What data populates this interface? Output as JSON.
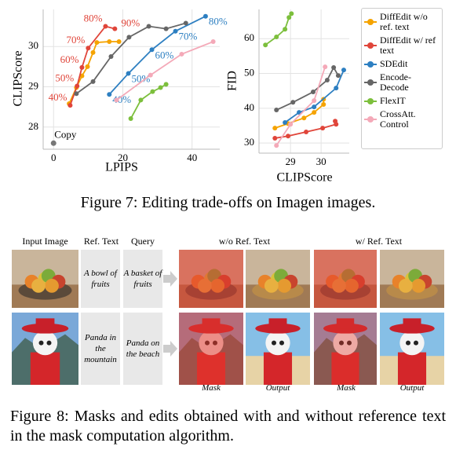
{
  "chart_data": [
    {
      "type": "line",
      "xlabel": "LPIPS",
      "ylabel": "CLIPScore",
      "xlim": [
        -3,
        48
      ],
      "ylim": [
        27.45,
        30.92
      ],
      "xticks": [
        0,
        20,
        40
      ],
      "yticks": [
        28,
        29,
        30
      ],
      "grid": true,
      "copy_point": {
        "label": "Copy",
        "x": 0,
        "y": 27.6,
        "color": "#777777"
      },
      "series": [
        {
          "name": "DiffEdit w/o ref. text",
          "color": "#f5a300",
          "x": [
            4.5,
            6.6,
            8.2,
            9.8,
            11.4,
            12.5,
            16.1,
            18.9
          ],
          "values": [
            28.58,
            28.98,
            29.27,
            29.5,
            29.85,
            30.1,
            30.12,
            30.12
          ]
        },
        {
          "name": "DiffEdit w/ ref text",
          "color": "#e0453a",
          "x": [
            4.8,
            6.8,
            8.2,
            10,
            15,
            17.7
          ],
          "values": [
            28.54,
            29.02,
            29.48,
            29.96,
            30.5,
            30.44
          ],
          "point_labels": [
            "40%",
            "50%",
            "60%",
            "70%",
            "80%",
            "90%"
          ]
        },
        {
          "name": "SDEdit",
          "color": "#2d7fc1",
          "x": [
            16.1,
            21.6,
            28.4,
            35.2,
            43.9
          ],
          "values": [
            28.81,
            29.33,
            29.92,
            30.38,
            30.75
          ],
          "point_labels": [
            "40%",
            "50%",
            "60%",
            "70%",
            "80%"
          ]
        },
        {
          "name": "Encode-Decode",
          "color": "#666666",
          "x": [
            6.6,
            11.4,
            16.6,
            21.8,
            27.5,
            32.5,
            38.2
          ],
          "values": [
            28.83,
            29.13,
            29.75,
            30.23,
            30.5,
            30.44,
            30.58
          ]
        },
        {
          "name": "FlexIT",
          "color": "#7cbf3c",
          "x": [
            22.3,
            25.2,
            28.6,
            30.9,
            32.5
          ],
          "values": [
            28.21,
            28.67,
            28.88,
            28.98,
            29.06
          ]
        },
        {
          "name": "CrossAtt. Control",
          "color": "#f4a9b8",
          "x": [
            18.2,
            28,
            37,
            46.1
          ],
          "values": [
            28.67,
            29.29,
            29.81,
            30.12
          ]
        }
      ]
    },
    {
      "type": "line",
      "xlabel": "CLIPScore",
      "ylabel": "FID",
      "xlim": [
        27.97,
        30.92
      ],
      "ylim": [
        27.1,
        68.4
      ],
      "xticks": [
        29,
        30
      ],
      "yticks": [
        30,
        40,
        50,
        60
      ],
      "grid": true,
      "series": [
        {
          "name": "DiffEdit w/o ref. text",
          "color": "#f5a300",
          "x": [
            28.49,
            28.92,
            29.44,
            29.77,
            30.08,
            30.08
          ],
          "values": [
            34.3,
            35.6,
            37.2,
            38.8,
            41.1,
            42.6
          ]
        },
        {
          "name": "DiffEdit w/ ref text",
          "color": "#e0453a",
          "x": [
            28.49,
            28.92,
            29.51,
            30.05,
            30.49,
            30.46
          ],
          "values": [
            31.4,
            32,
            33.2,
            34.3,
            35.4,
            36.3
          ]
        },
        {
          "name": "SDEdit",
          "color": "#2d7fc1",
          "x": [
            28.82,
            29.28,
            29.77,
            30.49,
            30.74
          ],
          "values": [
            35.9,
            38.8,
            40.4,
            45.8,
            51
          ]
        },
        {
          "name": "Encode-Decode",
          "color": "#666666",
          "x": [
            28.54,
            29.08,
            29.74,
            30.2,
            30.41,
            30.56
          ],
          "values": [
            39.5,
            41.7,
            44.7,
            48.1,
            51.7,
            49.4
          ]
        },
        {
          "name": "FlexIT",
          "color": "#7cbf3c",
          "x": [
            28.18,
            28.54,
            28.82,
            28.95,
            29.03
          ],
          "values": [
            58.2,
            60.5,
            62.7,
            66.1,
            67.2
          ]
        },
        {
          "name": "CrossAtt. Control",
          "color": "#f4a9b8",
          "x": [
            28.54,
            29,
            29.77,
            30.13
          ],
          "values": [
            29.3,
            35.4,
            42.2,
            51.9
          ]
        }
      ]
    }
  ],
  "figure7": {
    "caption": "Figure 7: Editing trade-offs on Imagen images."
  },
  "figure8": {
    "headers": [
      "Input Image",
      "Ref. Text",
      "Query",
      "w/o Ref. Text",
      "w/ Ref. Text"
    ],
    "rows": [
      {
        "ref_text": "A bowl of fruits",
        "query": "A basket of fruits"
      },
      {
        "ref_text": "Panda in the mountain",
        "query": "Panda on the beach"
      }
    ],
    "footer_labels": [
      "Mask",
      "Output",
      "Mask",
      "Output"
    ],
    "caption": "Figure 8: Masks and edits obtained with and without reference text in the mask computation algorithm."
  }
}
